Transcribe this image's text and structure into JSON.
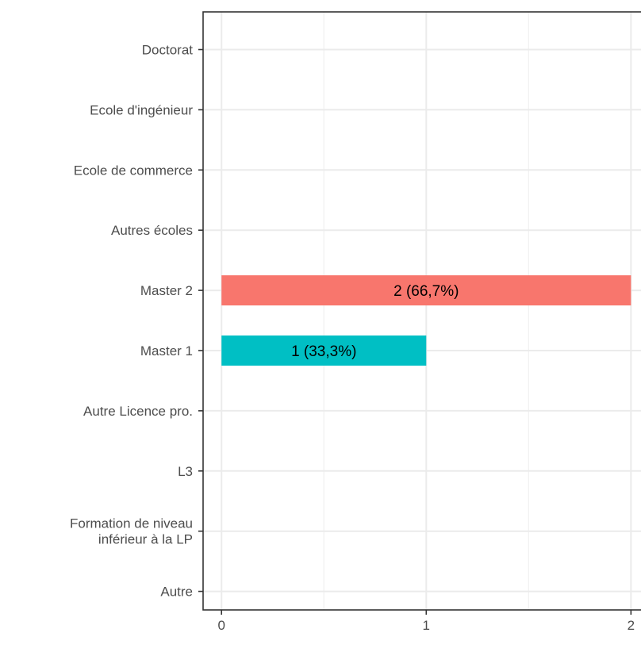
{
  "chart_data": {
    "type": "bar",
    "orientation": "horizontal",
    "categories": [
      "Doctorat",
      "Ecole d'ingénieur",
      "Ecole de commerce",
      "Autres écoles",
      "Master 2",
      "Master 1",
      "Autre Licence pro.",
      "L3",
      "Formation de niveau\ninférieur à la LP",
      "Autre"
    ],
    "values": [
      0,
      0,
      0,
      0,
      2,
      1,
      0,
      0,
      0,
      0
    ],
    "bar_labels": [
      "",
      "",
      "",
      "",
      "2 (66,7%)",
      "1 (33,3%)",
      "",
      "",
      "",
      ""
    ],
    "bar_colors": [
      "",
      "",
      "",
      "",
      "#F8766D",
      "#00BFC4",
      "",
      "",
      "",
      ""
    ],
    "x_ticks": [
      0,
      1,
      2
    ],
    "x_tick_labels": [
      "0",
      "1",
      "2"
    ],
    "xlim": [
      -0.09,
      2.08
    ],
    "title": "",
    "xlabel": "",
    "ylabel": "",
    "grid": true,
    "legend": "none"
  }
}
